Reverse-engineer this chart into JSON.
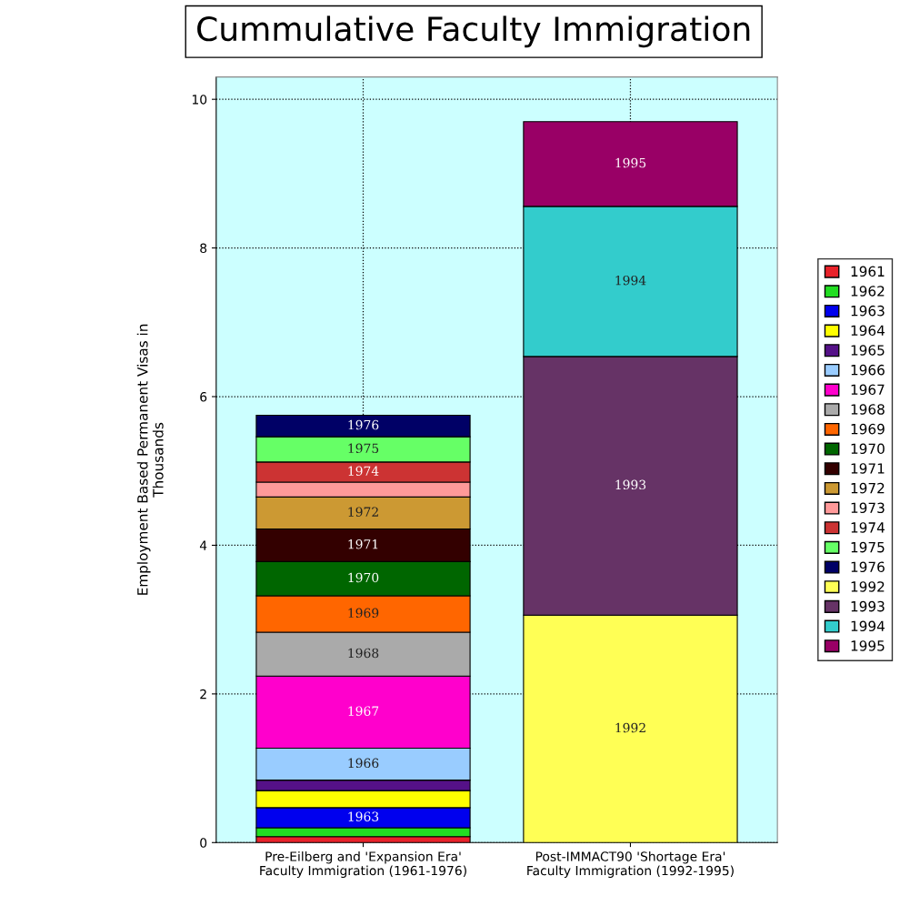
{
  "chart_data": {
    "type": "bar",
    "stacked": true,
    "title": "Cummulative Faculty Immigration",
    "ylabel": "Employment Based Permanent Visas in\nThousands",
    "categories": [
      "Pre-Eilberg and 'Expansion Era' Faculty Immigration (1961-1976)",
      "Post-IMMACT90 'Shortage Era' Faculty Immigration (1992-1995)"
    ],
    "ylim": [
      0,
      10.3
    ],
    "yticks": [
      0,
      2,
      4,
      6,
      8,
      10
    ],
    "grid": true,
    "legend": "right",
    "series": [
      {
        "name": "1961",
        "color": "#e8222a",
        "values": [
          0.08,
          null
        ]
      },
      {
        "name": "1962",
        "color": "#22dd22",
        "values": [
          0.12,
          null
        ]
      },
      {
        "name": "1963",
        "color": "#0000ee",
        "values": [
          0.27,
          null
        ]
      },
      {
        "name": "1964",
        "color": "#ffff00",
        "values": [
          0.23,
          null
        ]
      },
      {
        "name": "1965",
        "color": "#551188",
        "values": [
          0.14,
          null
        ]
      },
      {
        "name": "1966",
        "color": "#99ccff",
        "values": [
          0.43,
          null
        ]
      },
      {
        "name": "1967",
        "color": "#ff00cc",
        "values": [
          0.97,
          null
        ]
      },
      {
        "name": "1968",
        "color": "#aaaaaa",
        "values": [
          0.59,
          null
        ]
      },
      {
        "name": "1969",
        "color": "#ff6600",
        "values": [
          0.49,
          null
        ]
      },
      {
        "name": "1970",
        "color": "#006600",
        "values": [
          0.46,
          null
        ]
      },
      {
        "name": "1971",
        "color": "#330000",
        "values": [
          0.44,
          null
        ]
      },
      {
        "name": "1972",
        "color": "#cc9933",
        "values": [
          0.43,
          null
        ]
      },
      {
        "name": "1973",
        "color": "#ff9999",
        "values": [
          0.2,
          null
        ]
      },
      {
        "name": "1974",
        "color": "#cc3333",
        "values": [
          0.27,
          null
        ]
      },
      {
        "name": "1975",
        "color": "#66ff66",
        "values": [
          0.34,
          null
        ]
      },
      {
        "name": "1976",
        "color": "#000066",
        "values": [
          0.29,
          null
        ]
      },
      {
        "name": "1992",
        "color": "#ffff55",
        "values": [
          null,
          3.06
        ]
      },
      {
        "name": "1993",
        "color": "#663366",
        "values": [
          null,
          3.48
        ]
      },
      {
        "name": "1994",
        "color": "#33cccc",
        "values": [
          null,
          2.02
        ]
      },
      {
        "name": "1995",
        "color": "#990066",
        "values": [
          null,
          1.14
        ]
      }
    ]
  }
}
